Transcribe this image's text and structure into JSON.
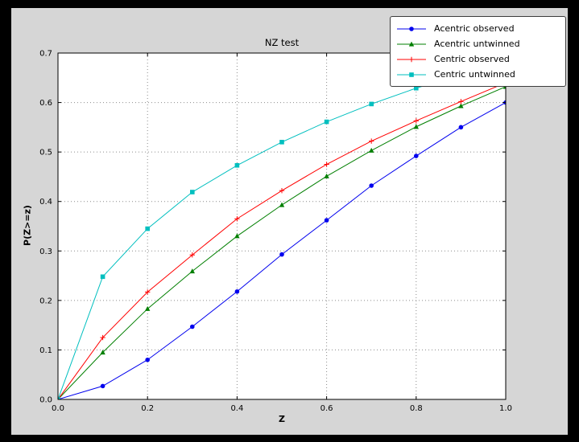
{
  "window": {
    "bg": "#000000",
    "figure_bg": "#d6d6d6",
    "plot_bg": "#ffffff",
    "grid_color": "#8c8c8c",
    "spine_color": "#000000"
  },
  "chart_data": {
    "type": "line",
    "title": "NZ test",
    "xlabel": "Z",
    "ylabel": "P(Z>=z)",
    "xlim": [
      0.0,
      1.0
    ],
    "ylim": [
      0.0,
      0.7
    ],
    "xticks": [
      "0.0",
      "0.2",
      "0.4",
      "0.6",
      "0.8",
      "1.0"
    ],
    "yticks": [
      "0.0",
      "0.1",
      "0.2",
      "0.3",
      "0.4",
      "0.5",
      "0.6",
      "0.7"
    ],
    "grid": true,
    "legend_position": "upper right",
    "x": [
      0.0,
      0.1,
      0.2,
      0.3,
      0.4,
      0.5,
      0.6,
      0.7,
      0.8,
      0.9,
      1.0
    ],
    "series": [
      {
        "name": "Acentric observed",
        "color": "#0000ee",
        "marker": "circle",
        "values": [
          0.0,
          0.027,
          0.08,
          0.147,
          0.218,
          0.293,
          0.362,
          0.432,
          0.492,
          0.55,
          0.6
        ]
      },
      {
        "name": "Acentric untwinned",
        "color": "#007f00",
        "marker": "triangle",
        "values": [
          0.0,
          0.095,
          0.183,
          0.259,
          0.33,
          0.393,
          0.451,
          0.503,
          0.551,
          0.593,
          0.632
        ]
      },
      {
        "name": "Centric observed",
        "color": "#ff0000",
        "marker": "plus",
        "values": [
          0.0,
          0.125,
          0.217,
          0.292,
          0.365,
          0.422,
          0.475,
          0.522,
          0.563,
          0.602,
          0.64
        ]
      },
      {
        "name": "Centric untwinned",
        "color": "#00bfbf",
        "marker": "square",
        "values": [
          0.0,
          0.248,
          0.345,
          0.419,
          0.473,
          0.52,
          0.561,
          0.597,
          0.629,
          0.657,
          0.683
        ]
      }
    ]
  }
}
